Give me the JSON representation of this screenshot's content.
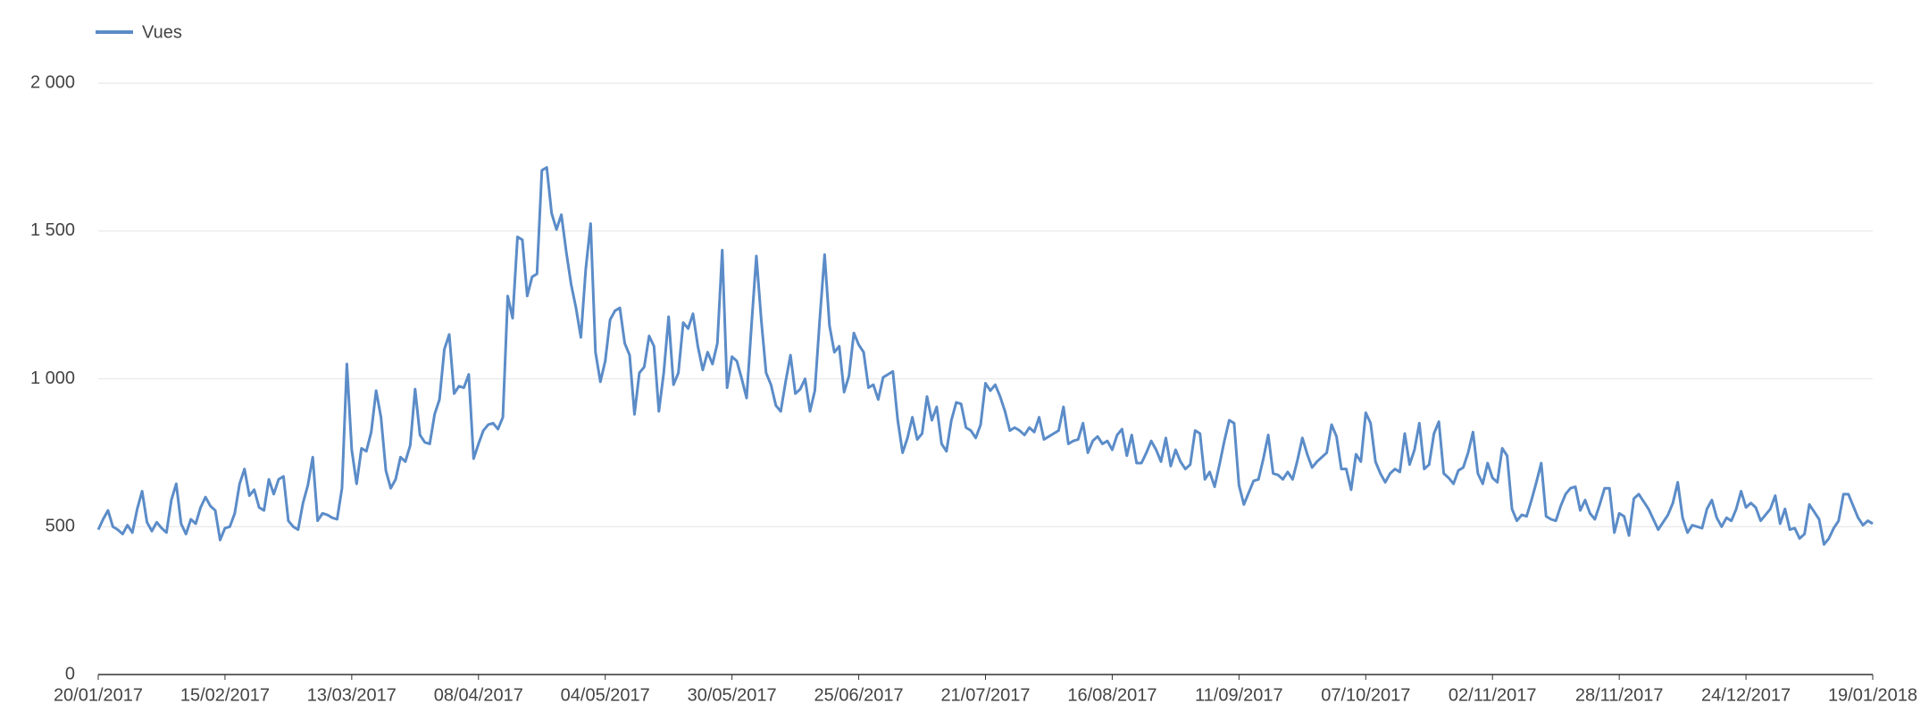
{
  "chart_data": {
    "type": "line",
    "legend": "top-left",
    "grid": true,
    "ylim": [
      0,
      2100
    ],
    "yticks": [
      0,
      500,
      {
        "value": 1000,
        "label": "1 000"
      },
      {
        "value": 1500,
        "label": "1 500"
      },
      {
        "value": 2000,
        "label": "2 000"
      }
    ],
    "xlim": [
      "2017-01-20",
      "2018-01-19"
    ],
    "xticks": [
      {
        "value": "2017-01-20",
        "label": "20/01/2017"
      },
      {
        "value": "2017-02-15",
        "label": "15/02/2017"
      },
      {
        "value": "2017-03-13",
        "label": "13/03/2017"
      },
      {
        "value": "2017-04-08",
        "label": "08/04/2017"
      },
      {
        "value": "2017-05-04",
        "label": "04/05/2017"
      },
      {
        "value": "2017-05-30",
        "label": "30/05/2017"
      },
      {
        "value": "2017-06-25",
        "label": "25/06/2017"
      },
      {
        "value": "2017-07-21",
        "label": "21/07/2017"
      },
      {
        "value": "2017-08-16",
        "label": "16/08/2017"
      },
      {
        "value": "2017-09-11",
        "label": "11/09/2017"
      },
      {
        "value": "2017-10-07",
        "label": "07/10/2017"
      },
      {
        "value": "2017-11-02",
        "label": "02/11/2017"
      },
      {
        "value": "2017-11-28",
        "label": "28/11/2017"
      },
      {
        "value": "2017-12-24",
        "label": "24/12/2017"
      },
      {
        "value": "2018-01-19",
        "label": "19/01/2018"
      }
    ],
    "x": [
      "2017-01-20",
      "2017-01-21",
      "2017-01-22",
      "2017-01-23",
      "2017-01-24",
      "2017-01-25",
      "2017-01-26",
      "2017-01-27",
      "2017-01-28",
      "2017-01-29",
      "2017-01-30",
      "2017-01-31",
      "2017-02-01",
      "2017-02-02",
      "2017-02-03",
      "2017-02-04",
      "2017-02-05",
      "2017-02-06",
      "2017-02-07",
      "2017-02-08",
      "2017-02-09",
      "2017-02-10",
      "2017-02-11",
      "2017-02-12",
      "2017-02-13",
      "2017-02-14",
      "2017-02-15",
      "2017-02-16",
      "2017-02-17",
      "2017-02-18",
      "2017-02-19",
      "2017-02-20",
      "2017-02-21",
      "2017-02-22",
      "2017-02-23",
      "2017-02-24",
      "2017-02-25",
      "2017-02-26",
      "2017-02-27",
      "2017-02-28",
      "2017-03-01",
      "2017-03-02",
      "2017-03-03",
      "2017-03-04",
      "2017-03-05",
      "2017-03-06",
      "2017-03-07",
      "2017-03-08",
      "2017-03-09",
      "2017-03-10",
      "2017-03-11",
      "2017-03-12",
      "2017-03-13",
      "2017-03-14",
      "2017-03-15",
      "2017-03-16",
      "2017-03-17",
      "2017-03-18",
      "2017-03-19",
      "2017-03-20",
      "2017-03-21",
      "2017-03-22",
      "2017-03-23",
      "2017-03-24",
      "2017-03-25",
      "2017-03-26",
      "2017-03-27",
      "2017-03-28",
      "2017-03-29",
      "2017-03-30",
      "2017-03-31",
      "2017-04-01",
      "2017-04-02",
      "2017-04-03",
      "2017-04-04",
      "2017-04-05",
      "2017-04-06",
      "2017-04-07",
      "2017-04-08",
      "2017-04-09",
      "2017-04-10",
      "2017-04-11",
      "2017-04-12",
      "2017-04-13",
      "2017-04-14",
      "2017-04-15",
      "2017-04-16",
      "2017-04-17",
      "2017-04-18",
      "2017-04-19",
      "2017-04-20",
      "2017-04-21",
      "2017-04-22",
      "2017-04-23",
      "2017-04-24",
      "2017-04-25",
      "2017-04-26",
      "2017-04-27",
      "2017-04-28",
      "2017-04-29",
      "2017-04-30",
      "2017-05-01",
      "2017-05-02",
      "2017-05-03",
      "2017-05-04",
      "2017-05-05",
      "2017-05-06",
      "2017-05-07",
      "2017-05-08",
      "2017-05-09",
      "2017-05-10",
      "2017-05-11",
      "2017-05-12",
      "2017-05-13",
      "2017-05-14",
      "2017-05-15",
      "2017-05-16",
      "2017-05-17",
      "2017-05-18",
      "2017-05-19",
      "2017-05-20",
      "2017-05-21",
      "2017-05-22",
      "2017-05-23",
      "2017-05-24",
      "2017-05-25",
      "2017-05-26",
      "2017-05-27",
      "2017-05-28",
      "2017-05-29",
      "2017-05-30",
      "2017-05-31",
      "2017-06-01",
      "2017-06-02",
      "2017-06-03",
      "2017-06-04",
      "2017-06-05",
      "2017-06-06",
      "2017-06-07",
      "2017-06-08",
      "2017-06-09",
      "2017-06-10",
      "2017-06-11",
      "2017-06-12",
      "2017-06-13",
      "2017-06-14",
      "2017-06-15",
      "2017-06-16",
      "2017-06-17",
      "2017-06-18",
      "2017-06-19",
      "2017-06-20",
      "2017-06-21",
      "2017-06-22",
      "2017-06-23",
      "2017-06-24",
      "2017-06-25",
      "2017-06-26",
      "2017-06-27",
      "2017-06-28",
      "2017-06-29",
      "2017-06-30",
      "2017-07-01",
      "2017-07-02",
      "2017-07-03",
      "2017-07-04",
      "2017-07-05",
      "2017-07-06",
      "2017-07-07",
      "2017-07-08",
      "2017-07-09",
      "2017-07-10",
      "2017-07-11",
      "2017-07-12",
      "2017-07-13",
      "2017-07-14",
      "2017-07-15",
      "2017-07-16",
      "2017-07-17",
      "2017-07-18",
      "2017-07-19",
      "2017-07-20",
      "2017-07-21",
      "2017-07-22",
      "2017-07-23",
      "2017-07-24",
      "2017-07-25",
      "2017-07-26",
      "2017-07-27",
      "2017-07-28",
      "2017-07-29",
      "2017-07-30",
      "2017-07-31",
      "2017-08-01",
      "2017-08-02",
      "2017-08-03",
      "2017-08-04",
      "2017-08-05",
      "2017-08-06",
      "2017-08-07",
      "2017-08-08",
      "2017-08-09",
      "2017-08-10",
      "2017-08-11",
      "2017-08-12",
      "2017-08-13",
      "2017-08-14",
      "2017-08-15",
      "2017-08-16",
      "2017-08-17",
      "2017-08-18",
      "2017-08-19",
      "2017-08-20",
      "2017-08-21",
      "2017-08-22",
      "2017-08-23",
      "2017-08-24",
      "2017-08-25",
      "2017-08-26",
      "2017-08-27",
      "2017-08-28",
      "2017-08-29",
      "2017-08-30",
      "2017-08-31",
      "2017-09-01",
      "2017-09-02",
      "2017-09-03",
      "2017-09-04",
      "2017-09-05",
      "2017-09-06",
      "2017-09-07",
      "2017-09-08",
      "2017-09-09",
      "2017-09-10",
      "2017-09-11",
      "2017-09-12",
      "2017-09-13",
      "2017-09-14",
      "2017-09-15",
      "2017-09-16",
      "2017-09-17",
      "2017-09-18",
      "2017-09-19",
      "2017-09-20",
      "2017-09-21",
      "2017-09-22",
      "2017-09-23",
      "2017-09-24",
      "2017-09-25",
      "2017-09-26",
      "2017-09-27",
      "2017-09-28",
      "2017-09-29",
      "2017-09-30",
      "2017-10-01",
      "2017-10-02",
      "2017-10-03",
      "2017-10-04",
      "2017-10-05",
      "2017-10-06",
      "2017-10-07",
      "2017-10-08",
      "2017-10-09",
      "2017-10-10",
      "2017-10-11",
      "2017-10-12",
      "2017-10-13",
      "2017-10-14",
      "2017-10-15",
      "2017-10-16",
      "2017-10-17",
      "2017-10-18",
      "2017-10-19",
      "2017-10-20",
      "2017-10-21",
      "2017-10-22",
      "2017-10-23",
      "2017-10-24",
      "2017-10-25",
      "2017-10-26",
      "2017-10-27",
      "2017-10-28",
      "2017-10-29",
      "2017-10-30",
      "2017-10-31",
      "2017-11-01",
      "2017-11-02",
      "2017-11-03",
      "2017-11-04",
      "2017-11-05",
      "2017-11-06",
      "2017-11-07",
      "2017-11-08",
      "2017-11-09",
      "2017-11-10",
      "2017-11-11",
      "2017-11-12",
      "2017-11-13",
      "2017-11-14",
      "2017-11-15",
      "2017-11-16",
      "2017-11-17",
      "2017-11-18",
      "2017-11-19",
      "2017-11-20",
      "2017-11-21",
      "2017-11-22",
      "2017-11-23",
      "2017-11-24",
      "2017-11-25",
      "2017-11-26",
      "2017-11-27",
      "2017-11-28",
      "2017-11-29",
      "2017-11-30",
      "2017-12-01",
      "2017-12-02",
      "2017-12-03",
      "2017-12-04",
      "2017-12-05",
      "2017-12-06",
      "2017-12-07",
      "2017-12-08",
      "2017-12-09",
      "2017-12-10",
      "2017-12-11",
      "2017-12-12",
      "2017-12-13",
      "2017-12-14",
      "2017-12-15",
      "2017-12-16",
      "2017-12-17",
      "2017-12-18",
      "2017-12-19",
      "2017-12-20",
      "2017-12-21",
      "2017-12-22",
      "2017-12-23",
      "2017-12-24",
      "2017-12-25",
      "2017-12-26",
      "2017-12-27",
      "2017-12-28",
      "2017-12-29",
      "2017-12-30",
      "2017-12-31",
      "2018-01-01",
      "2018-01-02",
      "2018-01-03",
      "2018-01-04",
      "2018-01-05",
      "2018-01-06",
      "2018-01-07",
      "2018-01-08",
      "2018-01-09",
      "2018-01-10",
      "2018-01-11",
      "2018-01-12",
      "2018-01-13",
      "2018-01-14",
      "2018-01-15",
      "2018-01-16",
      "2018-01-17",
      "2018-01-18",
      "2018-01-19"
    ],
    "series": [
      {
        "name": "Vues",
        "color": "#5b8cc8",
        "values": [
          490,
          525,
          555,
          500,
          490,
          475,
          505,
          480,
          560,
          620,
          515,
          485,
          515,
          495,
          480,
          590,
          645,
          510,
          475,
          525,
          510,
          565,
          600,
          570,
          555,
          455,
          495,
          500,
          545,
          645,
          695,
          605,
          625,
          565,
          555,
          660,
          610,
          660,
          670,
          520,
          500,
          490,
          580,
          640,
          735,
          520,
          545,
          540,
          530,
          525,
          630,
          1050,
          760,
          645,
          765,
          755,
          820,
          960,
          870,
          690,
          630,
          660,
          735,
          720,
          775,
          965,
          810,
          785,
          780,
          880,
          930,
          1100,
          1150,
          950,
          975,
          970,
          1015,
          730,
          780,
          825,
          845,
          850,
          830,
          870,
          1280,
          1205,
          1480,
          1470,
          1280,
          1345,
          1355,
          1705,
          1715,
          1560,
          1505,
          1555,
          1430,
          1320,
          1240,
          1140,
          1370,
          1525,
          1090,
          990,
          1060,
          1200,
          1230,
          1240,
          1120,
          1080,
          880,
          1020,
          1040,
          1145,
          1110,
          890,
          1020,
          1210,
          980,
          1020,
          1190,
          1170,
          1220,
          1110,
          1030,
          1090,
          1050,
          1120,
          1435,
          970,
          1075,
          1060,
          1000,
          935,
          1180,
          1415,
          1200,
          1020,
          980,
          910,
          890,
          990,
          1080,
          950,
          965,
          1000,
          890,
          960,
          1200,
          1420,
          1180,
          1090,
          1110,
          955,
          1010,
          1155,
          1115,
          1090,
          970,
          980,
          930,
          1005,
          1015,
          1025,
          860,
          750,
          800,
          870,
          795,
          815,
          940,
          860,
          905,
          780,
          755,
          860,
          920,
          915,
          835,
          825,
          800,
          845,
          985,
          960,
          980,
          940,
          890,
          825,
          835,
          825,
          810,
          835,
          820,
          870,
          795,
          805,
          815,
          825,
          905,
          780,
          790,
          795,
          850,
          750,
          790,
          805,
          780,
          790,
          760,
          810,
          830,
          740,
          810,
          715,
          715,
          750,
          790,
          760,
          720,
          800,
          705,
          760,
          720,
          695,
          710,
          825,
          815,
          660,
          685,
          635,
          710,
          790,
          860,
          850,
          640,
          575,
          615,
          655,
          660,
          730,
          810,
          680,
          675,
          660,
          685,
          660,
          725,
          800,
          745,
          700,
          720,
          735,
          750,
          845,
          805,
          695,
          695,
          625,
          745,
          720,
          885,
          850,
          720,
          680,
          650,
          680,
          695,
          685,
          815,
          710,
          760,
          850,
          695,
          710,
          815,
          855,
          680,
          665,
          645,
          690,
          700,
          750,
          820,
          680,
          645,
          715,
          665,
          650,
          765,
          740,
          560,
          520,
          540,
          535,
          590,
          650,
          715,
          535,
          525,
          520,
          570,
          610,
          630,
          635,
          555,
          590,
          545,
          525,
          575,
          630,
          630,
          480,
          545,
          535,
          470,
          595,
          610,
          585,
          560,
          525,
          490,
          515,
          540,
          580,
          650,
          530,
          480,
          505,
          500,
          495,
          560,
          590,
          530,
          500,
          530,
          520,
          560,
          620,
          565,
          580,
          565,
          520,
          540,
          560,
          605,
          510,
          560,
          490,
          495,
          460,
          475,
          575,
          550,
          525,
          440,
          460,
          495,
          520,
          610,
          610,
          570,
          530,
          505,
          520,
          510
        ]
      }
    ]
  }
}
